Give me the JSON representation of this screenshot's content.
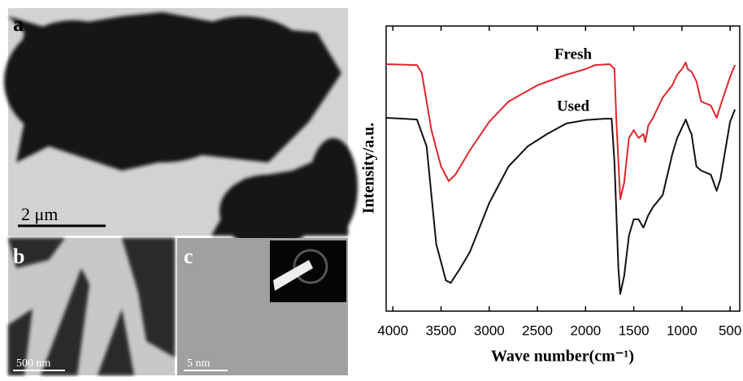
{
  "panels": [
    {
      "label": "a",
      "scale_bar": "2 μm"
    },
    {
      "label": "b",
      "scale_bar": "500 nm"
    },
    {
      "label": "c",
      "scale_bar": "5 nm"
    }
  ],
  "chart_data": {
    "type": "line",
    "xlabel": "Wave number(cm⁻¹)",
    "ylabel": "Intensity/a.u.",
    "xlim": [
      4070,
      400
    ],
    "ylim": [
      0,
      100
    ],
    "xticks": [
      4000,
      3500,
      3000,
      2500,
      2000,
      1500,
      1000,
      500
    ],
    "series": [
      {
        "name": "Fresh",
        "color": "#e0262b",
        "x": [
          4070,
          3750,
          3700,
          3600,
          3500,
          3420,
          3350,
          3200,
          3000,
          2800,
          2500,
          2200,
          2000,
          1900,
          1750,
          1700,
          1680,
          1640,
          1600,
          1550,
          1500,
          1450,
          1400,
          1380,
          1350,
          1300,
          1200,
          1100,
          1050,
          1000,
          960,
          940,
          900,
          850,
          800,
          700,
          640,
          600,
          500,
          450
        ],
        "values": [
          86.6,
          86.3,
          83.5,
          63.5,
          50.7,
          45.6,
          47.9,
          56.4,
          66.4,
          73.5,
          79.2,
          82.9,
          84.9,
          86.3,
          86.6,
          84.9,
          66.4,
          39.3,
          45.0,
          60.7,
          63.5,
          60.7,
          62.1,
          59.3,
          65.0,
          67.8,
          74.9,
          79.2,
          82.9,
          84.9,
          87.2,
          84.9,
          84.0,
          80.6,
          73.5,
          72.1,
          67.8,
          72.1,
          82.1,
          86.3
        ]
      },
      {
        "name": "Used",
        "color": "#111111",
        "x": [
          4070,
          3750,
          3650,
          3550,
          3450,
          3400,
          3300,
          3200,
          3000,
          2800,
          2600,
          2400,
          2200,
          2000,
          1800,
          1730,
          1700,
          1660,
          1640,
          1600,
          1550,
          1500,
          1450,
          1400,
          1350,
          1300,
          1200,
          1100,
          1050,
          960,
          920,
          900,
          850,
          800,
          700,
          640,
          600,
          500,
          450
        ],
        "values": [
          67.8,
          67.2,
          57.8,
          23.6,
          10.8,
          9.9,
          15.1,
          20.8,
          37.9,
          50.7,
          57.8,
          62.1,
          65.8,
          67.0,
          67.5,
          67.5,
          52.1,
          15.1,
          6.0,
          12.3,
          26.5,
          32.2,
          32.2,
          29.3,
          33.6,
          36.5,
          40.7,
          55.0,
          60.7,
          67.2,
          63.5,
          62.1,
          50.7,
          49.3,
          47.9,
          42.2,
          46.4,
          66.4,
          70.7
        ]
      }
    ]
  }
}
